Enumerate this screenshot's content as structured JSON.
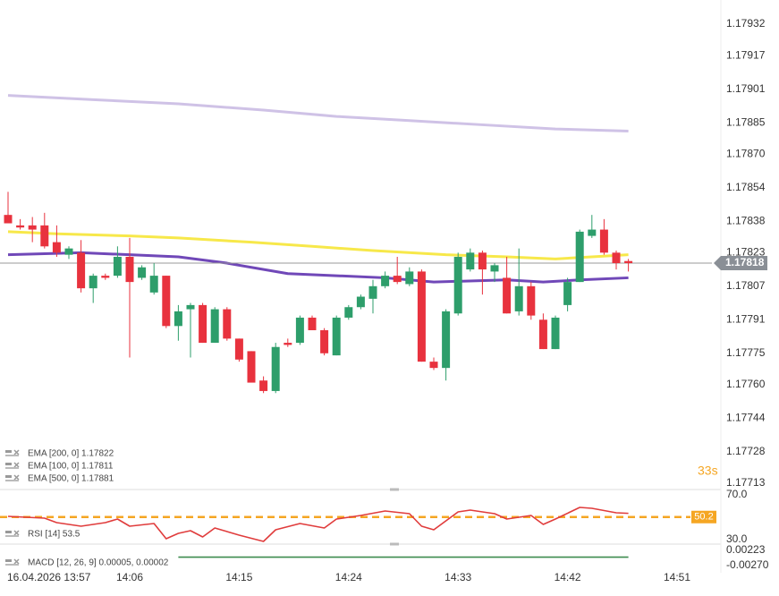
{
  "chart_data": [
    {
      "type": "candlestick",
      "ylim": [
        1.17713,
        1.17932
      ],
      "yticks": [
        1.17932,
        1.17917,
        1.17901,
        1.17885,
        {
          "value": 1.1787,
          "label": "1.17870"
        },
        1.17854,
        1.17838,
        1.17823,
        1.17807,
        1.17791,
        1.17775,
        {
          "value": 1.1776,
          "label": "1.17760"
        },
        1.17744,
        1.17728,
        1.17713
      ],
      "xticks": [
        {
          "value": 1,
          "label": "16.04.2026 13:57"
        },
        {
          "value": 10,
          "label": "14:06"
        },
        {
          "value": 19,
          "label": "14:15"
        },
        {
          "value": 28,
          "label": "14:24"
        },
        {
          "value": 37,
          "label": "14:33"
        },
        {
          "value": 46,
          "label": "14:42"
        },
        {
          "value": 55,
          "label": "14:51"
        }
      ],
      "up_color": "#2e9e6b",
      "down_color": "#e8323e",
      "open": [
        1.17841,
        1.17836,
        1.17836,
        1.17836,
        1.17828,
        1.17822,
        1.17823,
        1.17806,
        1.17812,
        1.17812,
        1.17821,
        1.17811,
        1.17804,
        1.17812,
        1.17788,
        1.17796,
        1.17798,
        1.1778,
        1.17796,
        1.17782,
        1.17776,
        1.17762,
        1.17757,
        1.1778,
        1.1778,
        1.17792,
        1.17786,
        1.17774,
        1.17792,
        1.17797,
        1.17801,
        1.17807,
        1.17812,
        1.17808,
        1.17814,
        1.17771,
        1.17768,
        1.17794,
        1.17815,
        1.17823,
        1.17814,
        1.17811,
        1.17795,
        1.17807,
        1.17791,
        1.17777,
        1.17798,
        1.17809,
        1.17831,
        1.17834,
        1.17823,
        1.17819
      ],
      "high": [
        1.17852,
        1.17839,
        1.1784,
        1.17842,
        1.17836,
        1.17826,
        1.17829,
        1.17813,
        1.17813,
        1.17826,
        1.1783,
        1.17817,
        1.17818,
        1.17812,
        1.17798,
        1.17799,
        1.17799,
        1.17797,
        1.17797,
        1.17782,
        1.17776,
        1.17764,
        1.1778,
        1.17782,
        1.17793,
        1.17793,
        1.17787,
        1.17793,
        1.17798,
        1.17803,
        1.1781,
        1.17814,
        1.17821,
        1.17816,
        1.17815,
        1.17773,
        1.17796,
        1.17823,
        1.17825,
        1.17824,
        1.17818,
        1.17821,
        1.17825,
        1.17809,
        1.17794,
        1.17793,
        1.17811,
        1.17834,
        1.17841,
        1.17839,
        1.17824,
        1.1782
      ],
      "low": [
        1.17837,
        1.17834,
        1.17828,
        1.17825,
        1.17821,
        1.1782,
        1.17804,
        1.17799,
        1.1781,
        1.17811,
        1.17773,
        1.1781,
        1.17803,
        1.17787,
        1.17781,
        1.17773,
        1.1778,
        1.1778,
        1.17781,
        1.17771,
        1.17761,
        1.17756,
        1.17756,
        1.17778,
        1.17779,
        1.17786,
        1.17774,
        1.17774,
        1.17791,
        1.17796,
        1.17794,
        1.17806,
        1.17808,
        1.17807,
        1.17771,
        1.17767,
        1.17762,
        1.17793,
        1.17814,
        1.17803,
        1.17809,
        1.17794,
        1.17793,
        1.17791,
        1.17777,
        1.17777,
        1.17795,
        1.17809,
        1.1783,
        1.17822,
        1.17815,
        1.17814
      ],
      "close": [
        1.17837,
        1.17835,
        1.17834,
        1.17826,
        1.17823,
        1.17825,
        1.17806,
        1.17812,
        1.17811,
        1.17821,
        1.17809,
        1.17816,
        1.17812,
        1.17788,
        1.17795,
        1.17798,
        1.1778,
        1.17796,
        1.17782,
        1.17772,
        1.17761,
        1.17757,
        1.17778,
        1.17779,
        1.17792,
        1.17786,
        1.17775,
        1.17792,
        1.17797,
        1.17802,
        1.17807,
        1.17812,
        1.17809,
        1.17814,
        1.17771,
        1.17768,
        1.17795,
        1.17821,
        1.17823,
        1.17815,
        1.17817,
        1.17794,
        1.17807,
        1.17793,
        1.17777,
        1.17792,
        1.17809,
        1.17833,
        1.17834,
        1.17823,
        1.17818,
        1.17818
      ],
      "overlays": [
        {
          "name": "EMA [200, 0] 1.17822",
          "color": "#f7e84a",
          "x": [
            0,
            4,
            10,
            14,
            20,
            25,
            30,
            36,
            41,
            45,
            48,
            51
          ],
          "values": [
            1.17833,
            1.17832,
            1.17831,
            1.1783,
            1.17828,
            1.17826,
            1.17824,
            1.17822,
            1.17821,
            1.1782,
            1.17821,
            1.17822
          ]
        },
        {
          "name": "EMA [100, 0] 1.17811",
          "color": "#7048b8",
          "x": [
            0,
            6,
            10,
            14,
            18,
            23,
            27,
            31,
            35,
            41,
            44,
            47,
            51
          ],
          "values": [
            1.17822,
            1.17823,
            1.17822,
            1.17821,
            1.17818,
            1.17813,
            1.17812,
            1.17811,
            1.17809,
            1.1781,
            1.17809,
            1.1781,
            1.17811
          ]
        },
        {
          "name": "EMA [500, 0] 1.17881",
          "color": "#cfc2e6",
          "x": [
            0,
            7,
            14,
            21,
            27,
            33,
            39,
            45,
            51
          ],
          "values": [
            1.17898,
            1.17896,
            1.17894,
            1.17891,
            1.17888,
            1.17886,
            1.17884,
            1.17882,
            1.17881
          ]
        }
      ],
      "last_price": 1.17818,
      "countdown": "33s"
    },
    {
      "type": "line",
      "name": "RSI [14] 53.5",
      "color": "#e03c3c",
      "ylim": [
        30,
        70
      ],
      "yticks": [
        {
          "value": 70,
          "label": "70.0"
        },
        {
          "value": 30,
          "label": "30.0"
        }
      ],
      "x": [
        0,
        3,
        4,
        6,
        8,
        9,
        10,
        12,
        13,
        14,
        15,
        16,
        17,
        19,
        21,
        22,
        24,
        26,
        27,
        29,
        31,
        33,
        34,
        35,
        37,
        38,
        40,
        41,
        43,
        44,
        45,
        47,
        48,
        50,
        51
      ],
      "values": [
        50.8,
        49.2,
        45.2,
        42,
        45.2,
        48.4,
        42,
        44.4,
        30.8,
        35.6,
        38,
        32.4,
        40.4,
        34,
        28.4,
        38.8,
        44.4,
        40.4,
        48.4,
        51.6,
        55.6,
        53.2,
        42,
        38.8,
        54.8,
        56.4,
        53.2,
        48.4,
        51.6,
        43.6,
        48.4,
        58.8,
        58,
        54,
        53.5
      ],
      "reference": 50.2,
      "reference_color": "#f5a623"
    },
    {
      "type": "line",
      "name": "MACD [12, 26, 9] 0.00005, 0.00002",
      "color": "#3d8b4f",
      "ylim": [
        -0.0027,
        0.00223
      ],
      "yticks": [
        0.00223,
        {
          "value": -0.0027,
          "label": "-0.00270"
        }
      ],
      "x": [
        14,
        51
      ],
      "values": [
        5e-05,
        5e-05
      ]
    }
  ]
}
